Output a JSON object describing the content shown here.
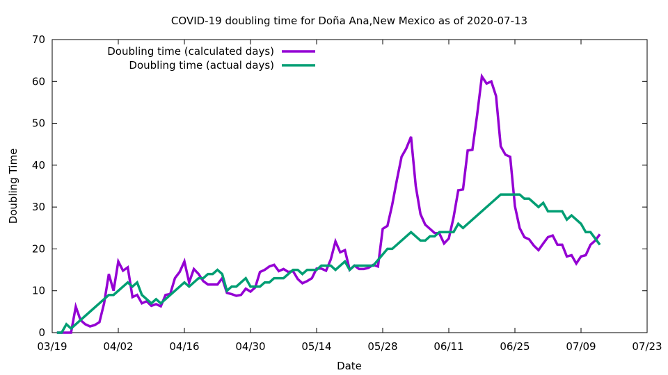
{
  "chart_data": {
    "type": "line",
    "title": "COVID-19 doubling time for Doña Ana,New Mexico as of 2020-07-13",
    "xlabel": "Date",
    "ylabel": "Doubling Time",
    "x_day_ticks": [
      0,
      14,
      28,
      42,
      56,
      70,
      84,
      98,
      112,
      126
    ],
    "x_tick_labels": [
      "03/19",
      "04/02",
      "04/16",
      "04/30",
      "05/14",
      "05/28",
      "06/11",
      "06/25",
      "07/09",
      "07/23"
    ],
    "xlim": [
      "03/19",
      "07/23"
    ],
    "ylim": [
      0,
      70
    ],
    "y_ticks": [
      0,
      10,
      20,
      30,
      40,
      50,
      60,
      70
    ],
    "grid": false,
    "legend_position": "top-left",
    "series": [
      {
        "name": "Doubling time (calculated days)",
        "color": "#9400d3",
        "points": [
          [
            "03/20",
            0
          ],
          [
            "03/21",
            0
          ],
          [
            "03/22",
            0
          ],
          [
            "03/23",
            0
          ],
          [
            "03/24",
            6.2
          ],
          [
            "03/25",
            3
          ],
          [
            "03/26",
            2
          ],
          [
            "03/27",
            1.5
          ],
          [
            "03/28",
            1.8
          ],
          [
            "03/29",
            2.5
          ],
          [
            "03/30",
            7
          ],
          [
            "03/31",
            14
          ],
          [
            "04/01",
            10
          ],
          [
            "04/02",
            17
          ],
          [
            "04/03",
            14.8
          ],
          [
            "04/04",
            15.6
          ],
          [
            "04/05",
            8.5
          ],
          [
            "04/06",
            9
          ],
          [
            "04/07",
            7
          ],
          [
            "04/08",
            7.5
          ],
          [
            "04/09",
            6.4
          ],
          [
            "04/10",
            6.8
          ],
          [
            "04/11",
            6.3
          ],
          [
            "04/12",
            9
          ],
          [
            "04/13",
            9.2
          ],
          [
            "04/14",
            13
          ],
          [
            "04/15",
            14.5
          ],
          [
            "04/16",
            17
          ],
          [
            "04/17",
            12
          ],
          [
            "04/18",
            15.2
          ],
          [
            "04/19",
            14
          ],
          [
            "04/20",
            12.3
          ],
          [
            "04/21",
            11.5
          ],
          [
            "04/22",
            11.5
          ],
          [
            "04/23",
            11.5
          ],
          [
            "04/24",
            13
          ],
          [
            "04/25",
            9.5
          ],
          [
            "04/26",
            9.2
          ],
          [
            "04/27",
            8.8
          ],
          [
            "04/28",
            9
          ],
          [
            "04/29",
            10.5
          ],
          [
            "04/30",
            9.8
          ],
          [
            "05/01",
            10.8
          ],
          [
            "05/02",
            14.5
          ],
          [
            "05/03",
            15
          ],
          [
            "05/04",
            15.8
          ],
          [
            "05/05",
            16.2
          ],
          [
            "05/06",
            14.7
          ],
          [
            "05/07",
            15.2
          ],
          [
            "05/08",
            14.5
          ],
          [
            "05/09",
            14.7
          ],
          [
            "05/10",
            12.8
          ],
          [
            "05/11",
            11.8
          ],
          [
            "05/12",
            12.3
          ],
          [
            "05/13",
            13
          ],
          [
            "05/14",
            15.3
          ],
          [
            "05/15",
            15.3
          ],
          [
            "05/16",
            14.8
          ],
          [
            "05/17",
            17.5
          ],
          [
            "05/18",
            21.8
          ],
          [
            "05/19",
            19.2
          ],
          [
            "05/20",
            19.7
          ],
          [
            "05/21",
            15
          ],
          [
            "05/22",
            16
          ],
          [
            "05/23",
            15.2
          ],
          [
            "05/24",
            15.2
          ],
          [
            "05/25",
            15.5
          ],
          [
            "05/26",
            16.2
          ],
          [
            "05/27",
            15.8
          ],
          [
            "05/28",
            24.8
          ],
          [
            "05/29",
            25.5
          ],
          [
            "05/30",
            30.5
          ],
          [
            "05/31",
            36.5
          ],
          [
            "06/01",
            42
          ],
          [
            "06/02",
            44
          ],
          [
            "06/03",
            46.8
          ],
          [
            "06/04",
            35
          ],
          [
            "06/05",
            28.3
          ],
          [
            "06/06",
            25.8
          ],
          [
            "06/07",
            24.8
          ],
          [
            "06/08",
            23.8
          ],
          [
            "06/09",
            23.7
          ],
          [
            "06/10",
            21.3
          ],
          [
            "06/11",
            22.5
          ],
          [
            "06/12",
            27.5
          ],
          [
            "06/13",
            34
          ],
          [
            "06/14",
            34.2
          ],
          [
            "06/15",
            43.5
          ],
          [
            "06/16",
            43.7
          ],
          [
            "06/17",
            52
          ],
          [
            "06/18",
            61.2
          ],
          [
            "06/19",
            59.5
          ],
          [
            "06/20",
            60
          ],
          [
            "06/21",
            56.5
          ],
          [
            "06/22",
            44.5
          ],
          [
            "06/23",
            42.5
          ],
          [
            "06/24",
            42
          ],
          [
            "06/25",
            30.2
          ],
          [
            "06/26",
            25
          ],
          [
            "06/27",
            22.8
          ],
          [
            "06/28",
            22.3
          ],
          [
            "06/29",
            20.8
          ],
          [
            "06/30",
            19.7
          ],
          [
            "07/01",
            21.3
          ],
          [
            "07/02",
            22.8
          ],
          [
            "07/03",
            23.2
          ],
          [
            "07/04",
            21
          ],
          [
            "07/05",
            21
          ],
          [
            "07/06",
            18.2
          ],
          [
            "07/07",
            18.5
          ],
          [
            "07/08",
            16.5
          ],
          [
            "07/09",
            18.2
          ],
          [
            "07/10",
            18.5
          ],
          [
            "07/11",
            21
          ],
          [
            "07/12",
            22
          ],
          [
            "07/13",
            23.5
          ]
        ]
      },
      {
        "name": "Doubling time (actual days)",
        "color": "#009e73",
        "points": [
          [
            "03/20",
            0
          ],
          [
            "03/21",
            0
          ],
          [
            "03/22",
            2
          ],
          [
            "03/23",
            1
          ],
          [
            "03/30",
            8
          ],
          [
            "03/31",
            9
          ],
          [
            "04/01",
            9
          ],
          [
            "04/04",
            12
          ],
          [
            "04/05",
            11
          ],
          [
            "04/06",
            12
          ],
          [
            "04/07",
            9
          ],
          [
            "04/09",
            7
          ],
          [
            "04/10",
            8
          ],
          [
            "04/11",
            7
          ],
          [
            "04/16",
            12
          ],
          [
            "04/17",
            11
          ],
          [
            "04/19",
            13
          ],
          [
            "04/20",
            13
          ],
          [
            "04/21",
            14
          ],
          [
            "04/22",
            14
          ],
          [
            "04/23",
            15
          ],
          [
            "04/24",
            14
          ],
          [
            "04/25",
            10
          ],
          [
            "04/26",
            11
          ],
          [
            "04/27",
            11
          ],
          [
            "04/29",
            13
          ],
          [
            "04/30",
            11
          ],
          [
            "05/02",
            11
          ],
          [
            "05/03",
            12
          ],
          [
            "05/04",
            12
          ],
          [
            "05/05",
            13
          ],
          [
            "05/07",
            13
          ],
          [
            "05/09",
            15
          ],
          [
            "05/10",
            15
          ],
          [
            "05/11",
            14
          ],
          [
            "05/12",
            15
          ],
          [
            "05/14",
            15
          ],
          [
            "05/15",
            16
          ],
          [
            "05/16",
            16
          ],
          [
            "05/17",
            16
          ],
          [
            "05/18",
            15
          ],
          [
            "05/20",
            17
          ],
          [
            "05/21",
            15
          ],
          [
            "05/22",
            16
          ],
          [
            "05/26",
            16
          ],
          [
            "05/29",
            20
          ],
          [
            "05/30",
            20
          ],
          [
            "06/03",
            24
          ],
          [
            "06/05",
            22
          ],
          [
            "06/06",
            22
          ],
          [
            "06/07",
            23
          ],
          [
            "06/08",
            23
          ],
          [
            "06/09",
            24
          ],
          [
            "06/12",
            24
          ],
          [
            "06/13",
            26
          ],
          [
            "06/14",
            25
          ],
          [
            "06/22",
            33
          ],
          [
            "06/25",
            33
          ],
          [
            "06/26",
            33
          ],
          [
            "06/27",
            32
          ],
          [
            "06/28",
            32
          ],
          [
            "06/30",
            30
          ],
          [
            "07/01",
            31
          ],
          [
            "07/02",
            29
          ],
          [
            "07/05",
            29
          ],
          [
            "07/06",
            27
          ],
          [
            "07/07",
            28
          ],
          [
            "07/09",
            26
          ],
          [
            "07/10",
            24
          ],
          [
            "07/11",
            24
          ],
          [
            "07/13",
            21
          ]
        ]
      }
    ]
  }
}
